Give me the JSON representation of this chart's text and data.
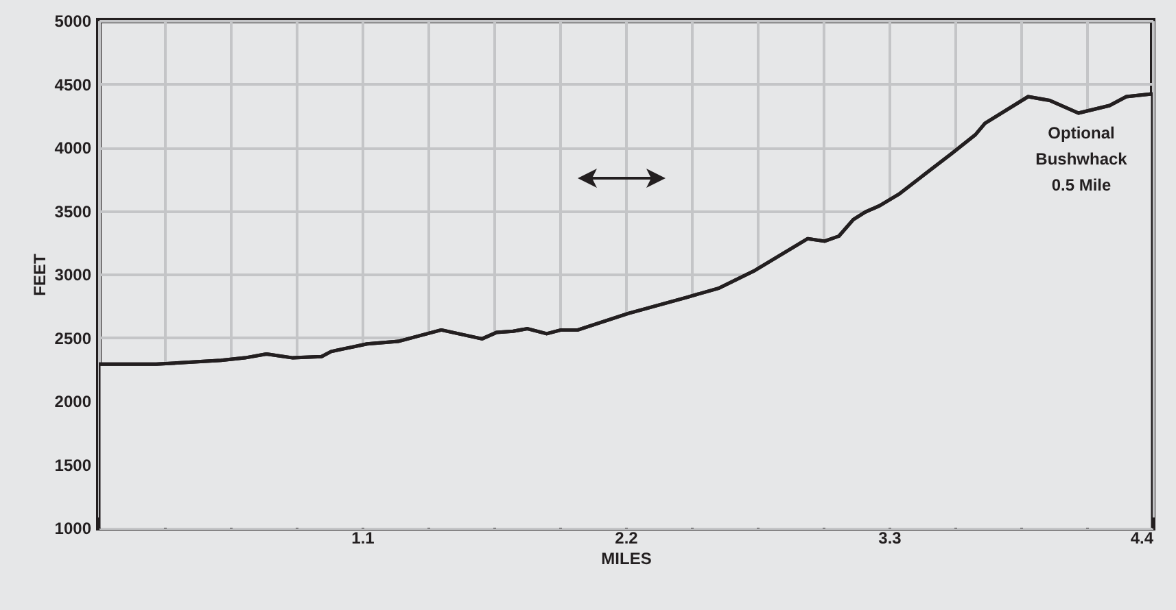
{
  "chart_data": {
    "type": "area",
    "xlabel": "MILES",
    "ylabel": "FEET",
    "x": [
      0,
      0.24,
      0.51,
      0.61,
      0.7,
      0.81,
      0.93,
      0.97,
      1.12,
      1.25,
      1.43,
      1.6,
      1.66,
      1.73,
      1.79,
      1.87,
      1.93,
      2.0,
      2.21,
      2.46,
      2.59,
      2.74,
      2.96,
      3.03,
      3.09,
      3.15,
      3.2,
      3.26,
      3.34,
      3.45,
      3.56,
      3.66,
      3.7,
      3.88,
      3.97,
      4.09,
      4.22,
      4.29,
      4.39,
      4.4
    ],
    "series": [
      {
        "color": "#e6e7e8",
        "values": [
          2290,
          2290,
          2320,
          2340,
          2370,
          2340,
          2350,
          2390,
          2450,
          2470,
          2560,
          2490,
          2540,
          2550,
          2570,
          2530,
          2560,
          2560,
          2690,
          2820,
          2890,
          3030,
          3280,
          3260,
          3300,
          3430,
          3490,
          3540,
          3630,
          3790,
          3950,
          4100,
          4190,
          4400,
          4370,
          4270,
          4330,
          4400,
          4420,
          4420
        ]
      }
    ],
    "xlim": [
      0,
      4.4
    ],
    "ylim": [
      1000,
      5000
    ],
    "xticks": [
      {
        "value": 0,
        "label": null
      },
      {
        "value": 0.275,
        "label": null
      },
      {
        "value": 0.55,
        "label": null
      },
      {
        "value": 0.825,
        "label": null
      },
      1.1,
      {
        "value": 1.375,
        "label": null
      },
      {
        "value": 1.65,
        "label": null
      },
      {
        "value": 1.925,
        "label": null
      },
      2.2,
      {
        "value": 2.475,
        "label": null
      },
      {
        "value": 2.75,
        "label": null
      },
      {
        "value": 3.025,
        "label": null
      },
      3.3,
      {
        "value": 3.575,
        "label": null
      },
      {
        "value": 3.85,
        "label": null
      },
      {
        "value": 4.125,
        "label": null
      },
      4.4
    ],
    "yticks": [
      1000,
      1500,
      2000,
      2500,
      3000,
      3500,
      4000,
      4500,
      5000
    ],
    "grid": true,
    "annotations": [
      "Optional\nBushwhack\n0.5 Mile"
    ]
  }
}
